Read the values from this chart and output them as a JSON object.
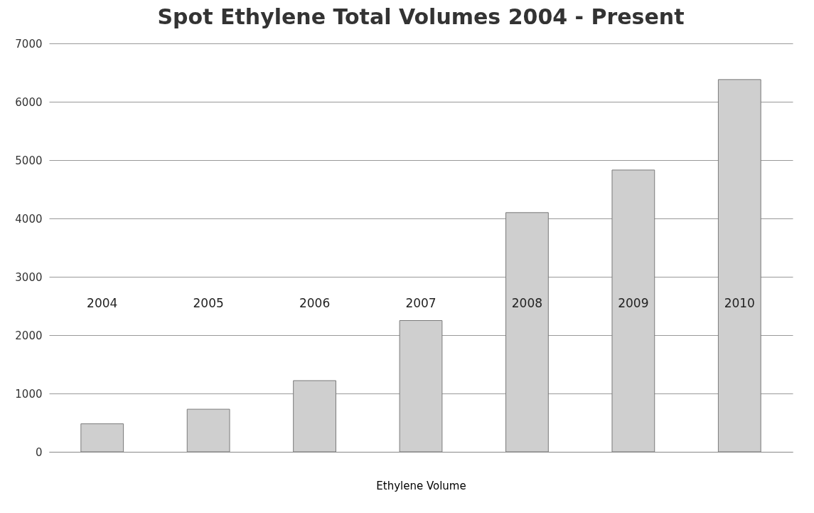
{
  "chart_data": {
    "type": "bar",
    "title": "Spot Ethylene Total Volumes 2004 - Present",
    "xlabel": "Ethylene Volume",
    "categories": [
      "2004",
      "2005",
      "2006",
      "2007",
      "2008",
      "2009",
      "2010"
    ],
    "values": [
      480,
      730,
      1220,
      2250,
      4100,
      4830,
      6380
    ],
    "color": "#cfcfcf",
    "ylim": [
      0,
      7000
    ],
    "yticks": [
      0,
      1000,
      2000,
      3000,
      4000,
      5000,
      6000,
      7000
    ],
    "grid": "y"
  }
}
